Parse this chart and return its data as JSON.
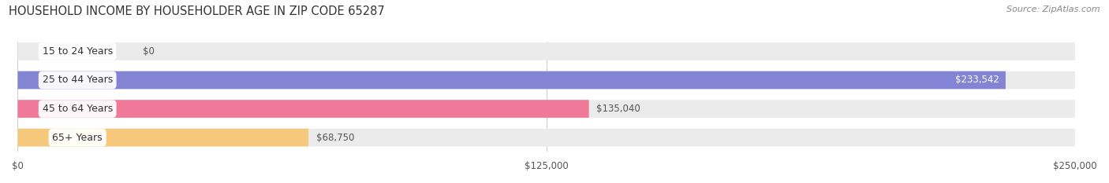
{
  "title": "HOUSEHOLD INCOME BY HOUSEHOLDER AGE IN ZIP CODE 65287",
  "source": "Source: ZipAtlas.com",
  "categories": [
    "15 to 24 Years",
    "25 to 44 Years",
    "45 to 64 Years",
    "65+ Years"
  ],
  "values": [
    0,
    233542,
    135040,
    68750
  ],
  "bar_colors": [
    "#5dcfcc",
    "#8484d4",
    "#f07898",
    "#f5c87c"
  ],
  "bar_bg_color": "#ebebeb",
  "bar_border_color": "#d8d8d8",
  "label_values": [
    "$0",
    "$233,542",
    "$135,040",
    "$68,750"
  ],
  "label_inside": [
    false,
    true,
    false,
    false
  ],
  "x_ticks": [
    0,
    125000,
    250000
  ],
  "x_tick_labels": [
    "$0",
    "$125,000",
    "$250,000"
  ],
  "xlim": [
    0,
    250000
  ],
  "bar_height": 0.62,
  "bar_rounding": 0.31,
  "figsize": [
    14.06,
    2.33
  ],
  "dpi": 100,
  "title_fontsize": 10.5,
  "source_fontsize": 8,
  "label_fontsize": 8.5,
  "tick_fontsize": 8.5,
  "category_fontsize": 9
}
